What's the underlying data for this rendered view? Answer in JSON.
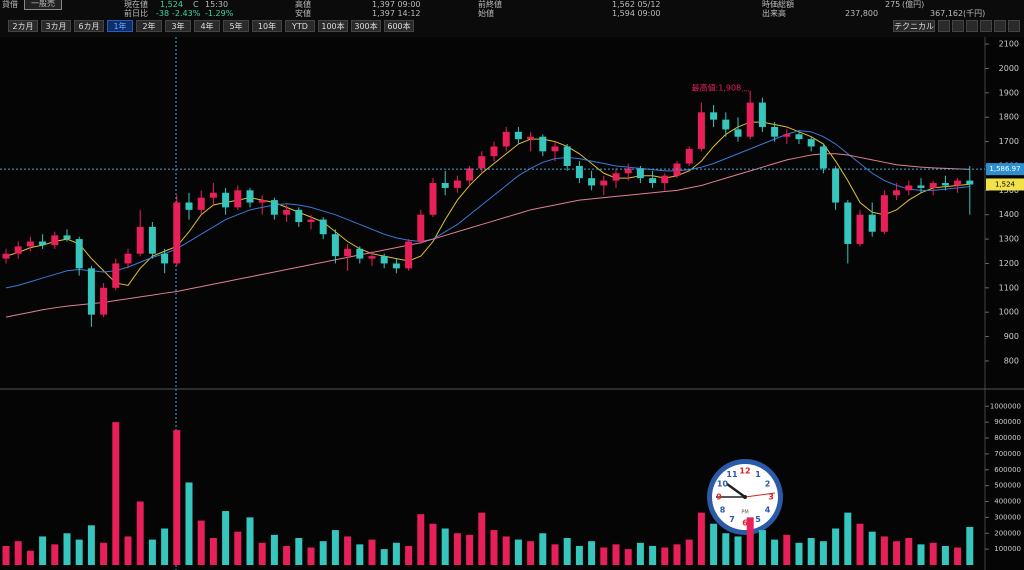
{
  "header": {
    "row1": [
      "貸借",
      "一般売",
      "現在値",
      "1,524",
      "C",
      "15:30",
      "高値",
      "1,397 09:00",
      "前終値",
      "1,562 05/12",
      "時価総額",
      "275",
      "(億円)"
    ],
    "row2": [
      "前日比",
      "-38",
      "-2.43%",
      "-1.29%",
      "安値",
      "1,397 14:12",
      "始値",
      "1,594 09:00",
      "出来高",
      "237,800",
      "367,162",
      "(千円)"
    ]
  },
  "toolbar": {
    "periods": [
      "2カ月",
      "3カ月",
      "6カ月",
      "1年",
      "2年",
      "3年",
      "4年",
      "5年",
      "10年",
      "YTD",
      "100本",
      "300本",
      "600本"
    ],
    "selected": "1年",
    "technical": "テクニカル"
  },
  "clock": {
    "numerals": [
      "12",
      "1",
      "2",
      "3",
      "4",
      "5",
      "6",
      "7",
      "8",
      "9",
      "10",
      "11"
    ],
    "label": "PM"
  },
  "chart_data": {
    "type": "candlestick",
    "up_color": "#e8205a",
    "down_color": "#36c6bd",
    "ylim": [
      689,
      2125
    ],
    "yticks": [
      2100,
      2000,
      1900,
      1800,
      1700,
      1600,
      1500,
      1400,
      1300,
      1200,
      1100,
      1000,
      900,
      800
    ],
    "crosshair": {
      "value": 1586.97,
      "label": "1,586.97"
    },
    "last": {
      "value": 1524,
      "label": "1,524"
    },
    "annotation": {
      "text": "最高値:1,908",
      "value": 1908
    },
    "candles": [
      [
        1220,
        1260,
        1200,
        1240
      ],
      [
        1240,
        1290,
        1220,
        1270
      ],
      [
        1270,
        1310,
        1250,
        1290
      ],
      [
        1290,
        1320,
        1260,
        1275
      ],
      [
        1275,
        1330,
        1260,
        1315
      ],
      [
        1315,
        1340,
        1290,
        1300
      ],
      [
        1300,
        1310,
        1150,
        1180
      ],
      [
        1180,
        1190,
        940,
        990
      ],
      [
        990,
        1120,
        980,
        1100
      ],
      [
        1100,
        1220,
        1090,
        1200
      ],
      [
        1200,
        1260,
        1180,
        1240
      ],
      [
        1240,
        1420,
        1230,
        1350
      ],
      [
        1350,
        1370,
        1220,
        1240
      ],
      [
        1240,
        1260,
        1160,
        1200
      ],
      [
        1200,
        1480,
        1190,
        1450
      ],
      [
        1450,
        1490,
        1380,
        1420
      ],
      [
        1420,
        1500,
        1400,
        1470
      ],
      [
        1470,
        1530,
        1440,
        1490
      ],
      [
        1490,
        1510,
        1400,
        1430
      ],
      [
        1430,
        1520,
        1420,
        1500
      ],
      [
        1500,
        1510,
        1430,
        1450
      ],
      [
        1450,
        1480,
        1400,
        1460
      ],
      [
        1460,
        1470,
        1380,
        1400
      ],
      [
        1400,
        1440,
        1370,
        1420
      ],
      [
        1420,
        1430,
        1350,
        1370
      ],
      [
        1370,
        1400,
        1340,
        1380
      ],
      [
        1380,
        1390,
        1300,
        1320
      ],
      [
        1320,
        1340,
        1200,
        1230
      ],
      [
        1230,
        1280,
        1170,
        1260
      ],
      [
        1260,
        1270,
        1200,
        1220
      ],
      [
        1220,
        1250,
        1190,
        1230
      ],
      [
        1230,
        1240,
        1180,
        1200
      ],
      [
        1200,
        1220,
        1160,
        1180
      ],
      [
        1180,
        1300,
        1170,
        1290
      ],
      [
        1290,
        1420,
        1280,
        1400
      ],
      [
        1400,
        1550,
        1390,
        1530
      ],
      [
        1530,
        1580,
        1480,
        1510
      ],
      [
        1510,
        1560,
        1490,
        1540
      ],
      [
        1540,
        1600,
        1520,
        1590
      ],
      [
        1590,
        1660,
        1570,
        1640
      ],
      [
        1640,
        1700,
        1620,
        1680
      ],
      [
        1680,
        1760,
        1660,
        1740
      ],
      [
        1740,
        1760,
        1690,
        1710
      ],
      [
        1710,
        1740,
        1660,
        1720
      ],
      [
        1720,
        1730,
        1640,
        1660
      ],
      [
        1660,
        1700,
        1620,
        1680
      ],
      [
        1680,
        1690,
        1580,
        1600
      ],
      [
        1600,
        1620,
        1530,
        1550
      ],
      [
        1550,
        1580,
        1500,
        1520
      ],
      [
        1520,
        1560,
        1480,
        1540
      ],
      [
        1540,
        1590,
        1510,
        1570
      ],
      [
        1570,
        1610,
        1540,
        1590
      ],
      [
        1590,
        1600,
        1530,
        1550
      ],
      [
        1550,
        1580,
        1510,
        1530
      ],
      [
        1530,
        1570,
        1500,
        1560
      ],
      [
        1560,
        1620,
        1550,
        1610
      ],
      [
        1610,
        1680,
        1600,
        1670
      ],
      [
        1670,
        1860,
        1660,
        1820
      ],
      [
        1820,
        1850,
        1760,
        1790
      ],
      [
        1790,
        1820,
        1720,
        1750
      ],
      [
        1750,
        1800,
        1700,
        1720
      ],
      [
        1720,
        1908,
        1710,
        1860
      ],
      [
        1860,
        1880,
        1740,
        1760
      ],
      [
        1760,
        1780,
        1700,
        1720
      ],
      [
        1720,
        1750,
        1690,
        1730
      ],
      [
        1730,
        1740,
        1690,
        1710
      ],
      [
        1710,
        1720,
        1660,
        1680
      ],
      [
        1680,
        1690,
        1570,
        1590
      ],
      [
        1590,
        1600,
        1420,
        1450
      ],
      [
        1450,
        1460,
        1200,
        1280
      ],
      [
        1280,
        1420,
        1270,
        1400
      ],
      [
        1400,
        1450,
        1310,
        1330
      ],
      [
        1330,
        1500,
        1320,
        1480
      ],
      [
        1480,
        1530,
        1460,
        1500
      ],
      [
        1500,
        1540,
        1480,
        1520
      ],
      [
        1520,
        1550,
        1490,
        1510
      ],
      [
        1510,
        1540,
        1480,
        1530
      ],
      [
        1530,
        1560,
        1500,
        1520
      ],
      [
        1520,
        1550,
        1490,
        1540
      ],
      [
        1540,
        1600,
        1400,
        1524
      ]
    ],
    "ma": [
      {
        "color": "#e0c030",
        "values": [
          1230,
          1245,
          1265,
          1275,
          1290,
          1300,
          1280,
          1220,
          1170,
          1120,
          1110,
          1180,
          1230,
          1250,
          1270,
          1330,
          1400,
          1440,
          1450,
          1460,
          1470,
          1460,
          1450,
          1430,
          1410,
          1390,
          1370,
          1330,
          1290,
          1260,
          1240,
          1230,
          1220,
          1210,
          1230,
          1290,
          1380,
          1460,
          1520,
          1570,
          1610,
          1650,
          1690,
          1710,
          1710,
          1700,
          1680,
          1650,
          1610,
          1570,
          1550,
          1550,
          1560,
          1560,
          1550,
          1560,
          1580,
          1620,
          1680,
          1730,
          1760,
          1780,
          1780,
          1770,
          1760,
          1740,
          1720,
          1690,
          1620,
          1540,
          1450,
          1410,
          1400,
          1420,
          1460,
          1490,
          1510,
          1515,
          1520,
          1525
        ]
      },
      {
        "color": "#3a7ad8",
        "values": [
          1100,
          1110,
          1125,
          1140,
          1155,
          1170,
          1175,
          1170,
          1165,
          1170,
          1185,
          1205,
          1225,
          1240,
          1260,
          1290,
          1320,
          1350,
          1380,
          1400,
          1420,
          1430,
          1440,
          1445,
          1440,
          1430,
          1415,
          1400,
          1380,
          1360,
          1340,
          1320,
          1305,
          1295,
          1290,
          1300,
          1330,
          1360,
          1400,
          1440,
          1480,
          1520,
          1560,
          1590,
          1615,
          1630,
          1635,
          1630,
          1620,
          1610,
          1600,
          1595,
          1590,
          1585,
          1580,
          1580,
          1585,
          1595,
          1610,
          1630,
          1650,
          1670,
          1690,
          1710,
          1730,
          1745,
          1740,
          1720,
          1690,
          1650,
          1610,
          1570,
          1540,
          1520,
          1505,
          1500,
          1500,
          1505,
          1510,
          1515
        ]
      },
      {
        "color": "#e08090",
        "values": [
          980,
          990,
          1000,
          1010,
          1018,
          1025,
          1030,
          1035,
          1040,
          1048,
          1055,
          1063,
          1070,
          1078,
          1085,
          1095,
          1105,
          1115,
          1125,
          1135,
          1145,
          1155,
          1165,
          1175,
          1185,
          1195,
          1205,
          1215,
          1225,
          1235,
          1245,
          1255,
          1265,
          1275,
          1285,
          1300,
          1315,
          1330,
          1345,
          1360,
          1375,
          1390,
          1405,
          1420,
          1430,
          1440,
          1450,
          1460,
          1465,
          1470,
          1475,
          1480,
          1485,
          1490,
          1495,
          1500,
          1510,
          1520,
          1535,
          1550,
          1565,
          1580,
          1595,
          1610,
          1625,
          1635,
          1645,
          1650,
          1650,
          1645,
          1635,
          1625,
          1615,
          1605,
          1600,
          1595,
          1592,
          1590,
          1588,
          1586
        ]
      }
    ],
    "volume": [
      120000,
      150000,
      90000,
      180000,
      130000,
      200000,
      160000,
      250000,
      140000,
      900000,
      180000,
      400000,
      160000,
      230000,
      850000,
      520000,
      280000,
      170000,
      340000,
      210000,
      300000,
      140000,
      190000,
      120000,
      170000,
      110000,
      150000,
      220000,
      180000,
      130000,
      160000,
      100000,
      140000,
      120000,
      320000,
      260000,
      230000,
      200000,
      190000,
      330000,
      220000,
      180000,
      160000,
      150000,
      200000,
      130000,
      170000,
      120000,
      150000,
      110000,
      130000,
      100000,
      140000,
      120000,
      110000,
      130000,
      160000,
      330000,
      260000,
      200000,
      180000,
      300000,
      220000,
      160000,
      190000,
      140000,
      170000,
      150000,
      230000,
      330000,
      260000,
      210000,
      180000,
      150000,
      170000,
      130000,
      140000,
      120000,
      110000,
      240000
    ],
    "vol_ylim": [
      0,
      1090000
    ],
    "vol_yticks": [
      1000000,
      900000,
      800000,
      700000,
      600000,
      500000,
      400000,
      300000,
      200000,
      100000
    ]
  }
}
